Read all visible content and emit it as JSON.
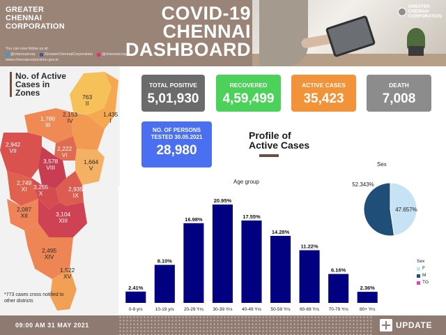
{
  "header": {
    "brand": [
      "GREATER",
      "CHENNAI",
      "CORPORATION"
    ],
    "follow_text": "You can now follow us at:",
    "social": [
      {
        "icon": "twitter-icon",
        "label": "@chennaicorp",
        "color": "#1da1f2"
      },
      {
        "icon": "facebook-icon",
        "label": "/GreaterChennaiCorporation",
        "color": "#3b5998"
      },
      {
        "icon": "instagram-icon",
        "label": "@chennaicorp",
        "color": "#e1306c"
      }
    ],
    "website": "www.chennaicorporation.gov.in",
    "title": [
      "COVID-19",
      "CHENNAI",
      "DASHBOARD"
    ],
    "logo_text": [
      "GREATER",
      "CHENNAI",
      "CORPORATION"
    ]
  },
  "zones": {
    "title": [
      "No. of Active",
      "Cases in",
      "Zones"
    ],
    "items": [
      {
        "value": "763",
        "roman": "II"
      },
      {
        "value": "1,435",
        "roman": "I"
      },
      {
        "value": "1,786",
        "roman": "III"
      },
      {
        "value": "2,153",
        "roman": "IV"
      },
      {
        "value": "2,942",
        "roman": "VII"
      },
      {
        "value": "2,222",
        "roman": "VI"
      },
      {
        "value": "3,578",
        "roman": "VIII"
      },
      {
        "value": "1,664",
        "roman": "V"
      },
      {
        "value": "2,749",
        "roman": "XI"
      },
      {
        "value": "3,255",
        "roman": "X"
      },
      {
        "value": "2,935",
        "roman": "IX"
      },
      {
        "value": "2,087",
        "roman": "XII"
      },
      {
        "value": "3,104",
        "roman": "XIII"
      },
      {
        "value": "2,495",
        "roman": "XIV"
      },
      {
        "value": "1,522",
        "roman": "XV"
      }
    ],
    "note": "*773 cases cross notified to other districts"
  },
  "cards": {
    "total": {
      "label": "TOTAL POSITIVE",
      "value": "5,01,930"
    },
    "recovered": {
      "label": "RECOVERED",
      "value": "4,59,499"
    },
    "active": {
      "label": "ACTIVE CASES",
      "value": "35,423"
    },
    "death": {
      "label": "DEATH",
      "value": "7,008"
    },
    "tested": {
      "label_line1": "NO. OF PERSONS",
      "label_line2": "TESTED 30.05.2021",
      "value": "28,980"
    }
  },
  "profile": {
    "title_line1": "Profile of",
    "title_line2": "Active Cases"
  },
  "chart_data": [
    {
      "type": "bar",
      "title": "Age group",
      "categories": [
        "0-9 yrs",
        "10-19 yrs",
        "20-29 Yrs",
        "30-39 Yrs",
        "40-49 Yrs",
        "50-59 Yrs",
        "60-69 Yrs",
        "70-79 Yrs",
        "80+ Yrs"
      ],
      "values": [
        2.41,
        8.1,
        16.98,
        20.95,
        17.55,
        14.28,
        11.22,
        6.16,
        2.36
      ],
      "labels": [
        "2.41%",
        "8.10%",
        "16.98%",
        "20.95%",
        "17.55%",
        "14.28%",
        "11.22%",
        "6.16%",
        "2.36%"
      ],
      "color": "#000080"
    },
    {
      "type": "pie",
      "title": "Sex",
      "categories": [
        "F",
        "M",
        "TG"
      ],
      "values": [
        47.657,
        52.343,
        0
      ],
      "labels": [
        "47.657%",
        "52.343%"
      ],
      "colors": [
        "#c7e1f5",
        "#1f4e79",
        "#e040d0"
      ],
      "legend_title": "Sex",
      "legend_position": "bottom-right"
    }
  ],
  "footer": {
    "timestamp": "09:00 AM 31 MAY 2021",
    "update_label": "UPDATE"
  }
}
